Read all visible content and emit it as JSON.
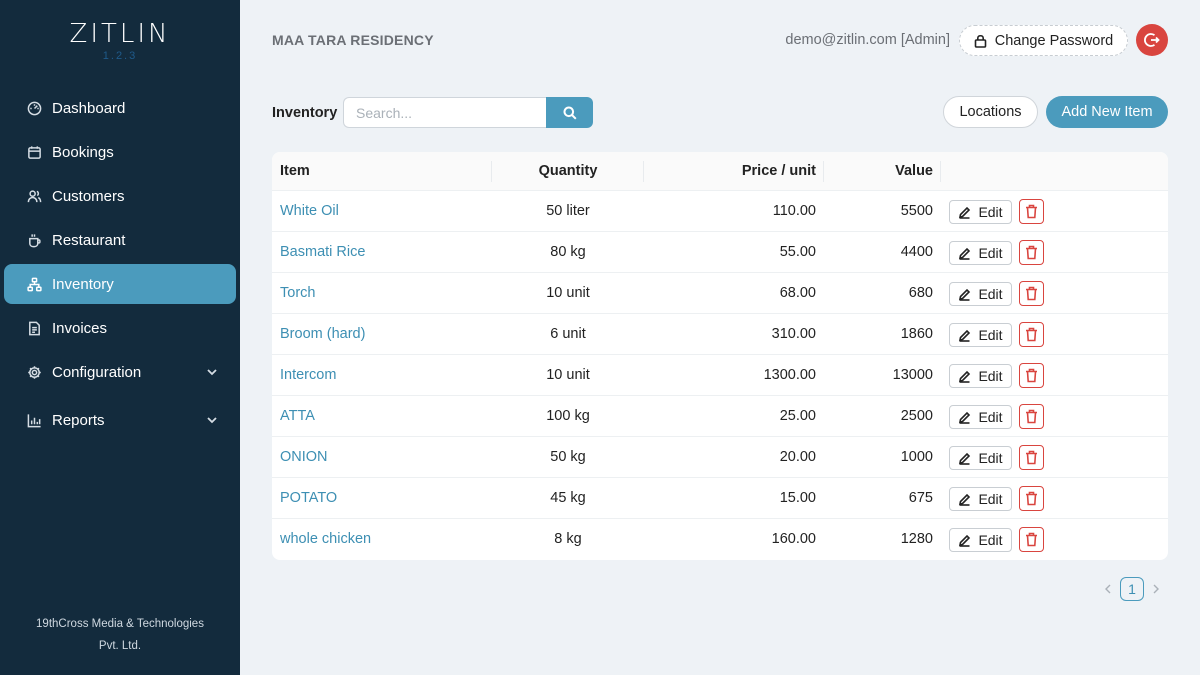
{
  "app": {
    "logo": "ZITLIN",
    "version": "1.2.3",
    "footer_line1": "19thCross Media & Technologies",
    "footer_line2": "Pvt. Ltd."
  },
  "sidebar": {
    "items": [
      {
        "label": "Dashboard",
        "icon": "dashboard-icon",
        "active": false
      },
      {
        "label": "Bookings",
        "icon": "calendar-icon",
        "active": false
      },
      {
        "label": "Customers",
        "icon": "users-icon",
        "active": false
      },
      {
        "label": "Restaurant",
        "icon": "coffee-cup-icon",
        "active": false
      },
      {
        "label": "Inventory",
        "icon": "hierarchy-icon",
        "active": true
      },
      {
        "label": "Invoices",
        "icon": "invoice-icon",
        "active": false
      },
      {
        "label": "Configuration",
        "icon": "gear-icon",
        "active": false,
        "expandable": true
      },
      {
        "label": "Reports",
        "icon": "bar-chart-icon",
        "active": false,
        "expandable": true
      }
    ]
  },
  "header": {
    "org_name": "MAA TARA RESIDENCY",
    "user": "demo@zitlin.com [Admin]",
    "change_password": "Change Password"
  },
  "toolbar": {
    "label": "Inventory",
    "search_placeholder": "Search...",
    "search_value": "",
    "locations": "Locations",
    "add_new": "Add New Item"
  },
  "table": {
    "headers": {
      "item": "Item",
      "quantity": "Quantity",
      "price": "Price / unit",
      "value": "Value"
    },
    "edit_label": "Edit",
    "rows": [
      {
        "item": "White Oil",
        "quantity": "50 liter",
        "price": "110.00",
        "value": "5500"
      },
      {
        "item": "Basmati Rice",
        "quantity": "80 kg",
        "price": "55.00",
        "value": "4400"
      },
      {
        "item": "Torch",
        "quantity": "10 unit",
        "price": "68.00",
        "value": "680"
      },
      {
        "item": "Broom (hard)",
        "quantity": "6 unit",
        "price": "310.00",
        "value": "1860"
      },
      {
        "item": "Intercom",
        "quantity": "10 unit",
        "price": "1300.00",
        "value": "13000"
      },
      {
        "item": "ATTA",
        "quantity": "100 kg",
        "price": "25.00",
        "value": "2500"
      },
      {
        "item": "ONION",
        "quantity": "50 kg",
        "price": "20.00",
        "value": "1000"
      },
      {
        "item": "POTATO",
        "quantity": "45 kg",
        "price": "15.00",
        "value": "675"
      },
      {
        "item": "whole chicken",
        "quantity": "8 kg",
        "price": "160.00",
        "value": "1280"
      }
    ]
  },
  "pagination": {
    "current": "1"
  },
  "colors": {
    "sidebar_bg": "#132b3d",
    "accent": "#4b9bbd",
    "danger": "#d9453f",
    "page_bg": "#eef2f6"
  }
}
